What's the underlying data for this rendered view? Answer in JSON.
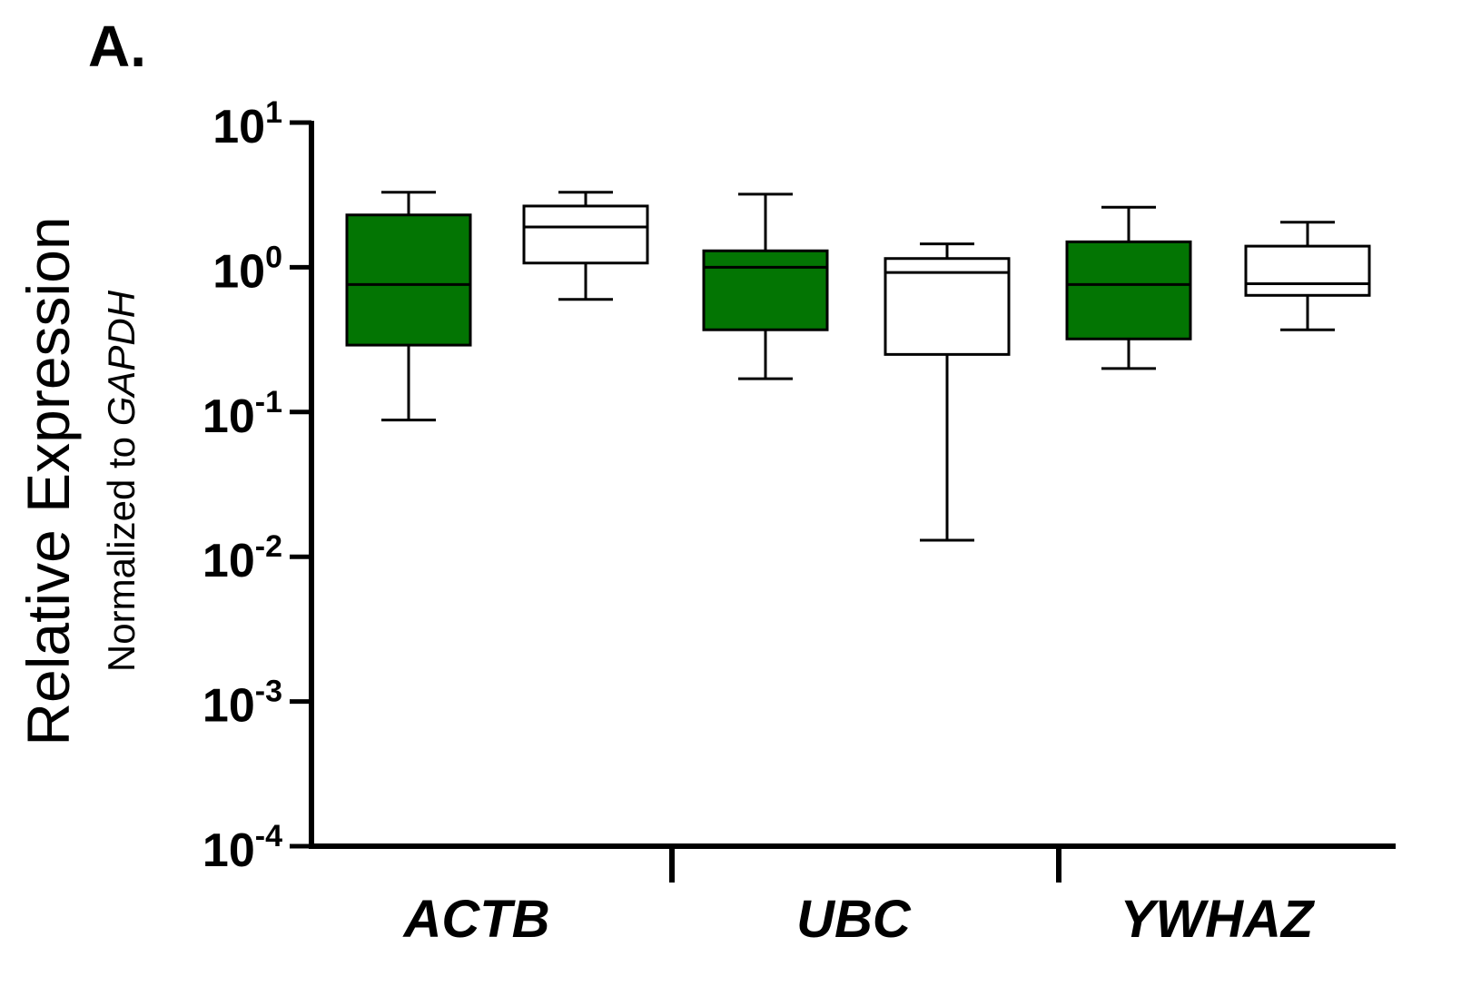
{
  "chart_data": {
    "type": "box",
    "panel_label": "A.",
    "ylabel": "Relative Expression",
    "ylabel_sub_prefix": "Normalized to ",
    "ylabel_sub_gene": "GAPDH",
    "yscale": "log",
    "ylim": [
      0.0001,
      10
    ],
    "yticks": [
      {
        "base": "10",
        "exp": "1",
        "value": 10
      },
      {
        "base": "10",
        "exp": "0",
        "value": 1
      },
      {
        "base": "10",
        "exp": "-1",
        "value": 0.1
      },
      {
        "base": "10",
        "exp": "-2",
        "value": 0.01
      },
      {
        "base": "10",
        "exp": "-3",
        "value": 0.001
      },
      {
        "base": "10",
        "exp": "-4",
        "value": 0.0001
      }
    ],
    "categories": [
      "ACTB",
      "UBC",
      "YWHAZ"
    ],
    "series": [
      {
        "fill": "#037503",
        "boxes": [
          {
            "min": 0.088,
            "q1": 0.29,
            "median": 0.76,
            "q3": 2.3,
            "max": 3.3
          },
          {
            "min": 0.17,
            "q1": 0.37,
            "median": 1.0,
            "q3": 1.3,
            "max": 3.2
          },
          {
            "min": 0.2,
            "q1": 0.32,
            "median": 0.76,
            "q3": 1.5,
            "max": 2.6
          }
        ]
      },
      {
        "fill": "#ffffff",
        "boxes": [
          {
            "min": 0.6,
            "q1": 1.07,
            "median": 1.9,
            "q3": 2.65,
            "max": 3.3
          },
          {
            "min": 0.013,
            "q1": 0.25,
            "median": 0.92,
            "q3": 1.15,
            "max": 1.45
          },
          {
            "min": 0.37,
            "q1": 0.64,
            "median": 0.77,
            "q3": 1.4,
            "max": 2.05
          }
        ]
      }
    ],
    "grid": false,
    "legend": "none"
  }
}
